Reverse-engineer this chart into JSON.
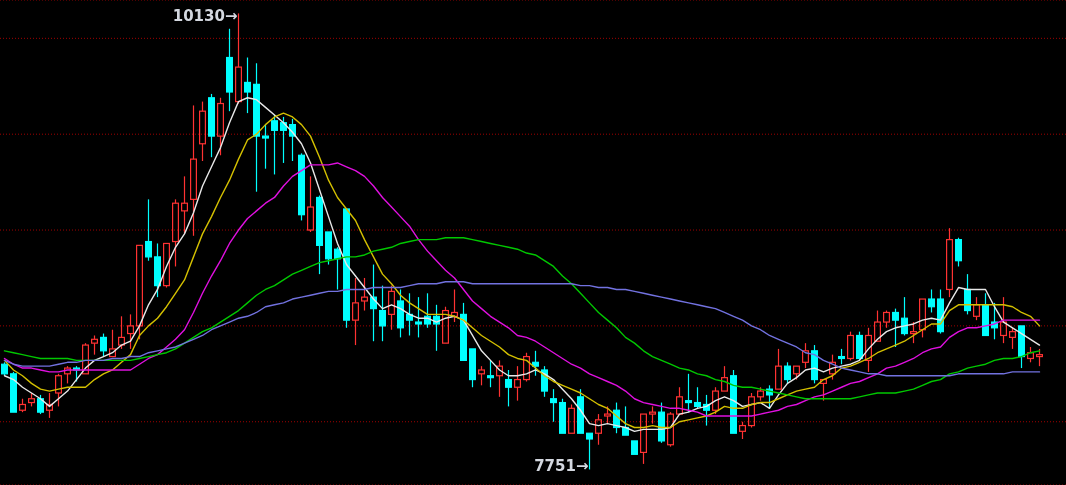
{
  "chart_data": {
    "type": "candlestick",
    "categories": [
      null,
      null,
      null,
      null,
      null,
      null,
      null,
      null,
      null,
      null,
      null,
      null,
      null,
      null,
      null,
      null,
      null,
      null,
      null,
      null,
      null,
      null,
      null,
      null,
      null,
      null,
      null,
      null,
      null,
      null,
      null,
      null,
      null,
      null,
      null,
      null,
      null,
      null,
      null,
      null,
      null,
      null,
      null,
      null,
      null,
      null,
      null,
      null,
      null,
      null,
      null,
      null,
      null,
      null,
      null,
      null,
      null,
      null,
      null,
      null,
      null,
      null,
      null,
      null,
      null,
      null,
      null,
      null,
      null,
      null,
      null,
      null,
      null,
      null,
      null,
      null,
      null,
      null,
      null,
      null,
      null,
      null,
      null,
      null,
      null,
      null,
      null,
      null,
      null,
      null,
      null,
      null,
      null,
      null,
      null,
      null,
      null,
      null,
      null,
      null,
      null,
      null,
      null,
      null,
      null,
      null,
      null,
      null,
      null,
      null,
      null,
      null,
      null,
      null,
      null,
      null
    ],
    "ohlc": [
      [
        8300,
        8310,
        8240,
        8250
      ],
      [
        8250,
        8260,
        8050,
        8050
      ],
      [
        8060,
        8120,
        8050,
        8090
      ],
      [
        8100,
        8150,
        8080,
        8120
      ],
      [
        8120,
        8140,
        8040,
        8050
      ],
      [
        8060,
        8150,
        8020,
        8090
      ],
      [
        8150,
        8250,
        8080,
        8240
      ],
      [
        8250,
        8290,
        8200,
        8280
      ],
      [
        8280,
        8290,
        8210,
        8270
      ],
      [
        8250,
        8410,
        8250,
        8400
      ],
      [
        8410,
        8450,
        8350,
        8430
      ],
      [
        8440,
        8460,
        8340,
        8370
      ],
      [
        8340,
        8480,
        8340,
        8380
      ],
      [
        8400,
        8550,
        8380,
        8440
      ],
      [
        8460,
        8560,
        8380,
        8500
      ],
      [
        8500,
        8920,
        8430,
        8920
      ],
      [
        8940,
        9160,
        8840,
        8860
      ],
      [
        8860,
        8930,
        8650,
        8710
      ],
      [
        8710,
        8930,
        8700,
        8930
      ],
      [
        8940,
        9160,
        8810,
        9140
      ],
      [
        9100,
        9280,
        8980,
        9140
      ],
      [
        9160,
        9650,
        8970,
        9370
      ],
      [
        9450,
        9670,
        9360,
        9620
      ],
      [
        9690,
        9710,
        9380,
        9490
      ],
      [
        9490,
        9690,
        9390,
        9660
      ],
      [
        9900,
        10050,
        9620,
        9720
      ],
      [
        9670,
        10130,
        9660,
        9850
      ],
      [
        9770,
        9900,
        9610,
        9720
      ],
      [
        9760,
        9870,
        9200,
        9490
      ],
      [
        9490,
        9550,
        9320,
        9480
      ],
      [
        9570,
        9600,
        9290,
        9520
      ],
      [
        9560,
        9590,
        9350,
        9520
      ],
      [
        9550,
        9580,
        9360,
        9490
      ],
      [
        9390,
        9400,
        9050,
        9080
      ],
      [
        9000,
        9280,
        8990,
        9120
      ],
      [
        9170,
        9180,
        8770,
        8920
      ],
      [
        8990,
        8990,
        8820,
        8850
      ],
      [
        8900,
        8910,
        8690,
        8850
      ],
      [
        9110,
        9110,
        8490,
        8530
      ],
      [
        8530,
        8750,
        8400,
        8620
      ],
      [
        8630,
        8750,
        8580,
        8650
      ],
      [
        8650,
        8820,
        8420,
        8590
      ],
      [
        8580,
        8710,
        8420,
        8500
      ],
      [
        8560,
        8710,
        8480,
        8680
      ],
      [
        8630,
        8690,
        8440,
        8490
      ],
      [
        8560,
        8670,
        8450,
        8530
      ],
      [
        8520,
        8650,
        8440,
        8510
      ],
      [
        8550,
        8670,
        8490,
        8510
      ],
      [
        8550,
        8610,
        8370,
        8510
      ],
      [
        8410,
        8600,
        8410,
        8580
      ],
      [
        8550,
        8690,
        8520,
        8570
      ],
      [
        8560,
        8620,
        8320,
        8320
      ],
      [
        8380,
        8380,
        8180,
        8220
      ],
      [
        8250,
        8290,
        8190,
        8270
      ],
      [
        8240,
        8320,
        8180,
        8230
      ],
      [
        8240,
        8320,
        8130,
        8290
      ],
      [
        8220,
        8270,
        8080,
        8180
      ],
      [
        8180,
        8290,
        8110,
        8220
      ],
      [
        8220,
        8360,
        8210,
        8340
      ],
      [
        8310,
        8370,
        8240,
        8290
      ],
      [
        8270,
        8290,
        8130,
        8160
      ],
      [
        8120,
        8170,
        8000,
        8100
      ],
      [
        8100,
        8120,
        7940,
        7940
      ],
      [
        7940,
        8090,
        7940,
        8070
      ],
      [
        8130,
        8170,
        7940,
        7940
      ],
      [
        7940,
        7940,
        7751,
        7910
      ],
      [
        7940,
        8040,
        7880,
        8010
      ],
      [
        8030,
        8080,
        7990,
        8040
      ],
      [
        8060,
        8100,
        7940,
        7970
      ],
      [
        7970,
        8080,
        7930,
        7930
      ],
      [
        7900,
        7900,
        7830,
        7830
      ],
      [
        7840,
        8040,
        7780,
        8040
      ],
      [
        8040,
        8080,
        7990,
        8050
      ],
      [
        8050,
        8100,
        7890,
        7900
      ],
      [
        7880,
        8050,
        7870,
        8040
      ],
      [
        8040,
        8180,
        8040,
        8130
      ],
      [
        8110,
        8250,
        8050,
        8100
      ],
      [
        8100,
        8180,
        8070,
        8080
      ],
      [
        8090,
        8140,
        7980,
        8060
      ],
      [
        8060,
        8180,
        8040,
        8160
      ],
      [
        8160,
        8290,
        8160,
        8230
      ],
      [
        8240,
        8270,
        7940,
        7940
      ],
      [
        7950,
        8000,
        7910,
        7980
      ],
      [
        7980,
        8150,
        7970,
        8130
      ],
      [
        8130,
        8180,
        8110,
        8160
      ],
      [
        8170,
        8190,
        8070,
        8140
      ],
      [
        8170,
        8380,
        8170,
        8290
      ],
      [
        8290,
        8310,
        8200,
        8220
      ],
      [
        8250,
        8290,
        8220,
        8290
      ],
      [
        8310,
        8410,
        8280,
        8370
      ],
      [
        8370,
        8400,
        8200,
        8220
      ],
      [
        8200,
        8220,
        8110,
        8220
      ],
      [
        8250,
        8350,
        8220,
        8310
      ],
      [
        8340,
        8380,
        8300,
        8330
      ],
      [
        8330,
        8470,
        8320,
        8450
      ],
      [
        8450,
        8470,
        8320,
        8330
      ],
      [
        8320,
        8490,
        8260,
        8450
      ],
      [
        8420,
        8580,
        8420,
        8520
      ],
      [
        8520,
        8580,
        8490,
        8570
      ],
      [
        8570,
        8590,
        8390,
        8530
      ],
      [
        8540,
        8650,
        8450,
        8460
      ],
      [
        8460,
        8520,
        8410,
        8470
      ],
      [
        8480,
        8640,
        8440,
        8640
      ],
      [
        8640,
        8690,
        8570,
        8600
      ],
      [
        8640,
        8690,
        8460,
        8470
      ],
      [
        8690,
        9010,
        8650,
        8950
      ],
      [
        8950,
        8960,
        8810,
        8840
      ],
      [
        8690,
        8770,
        8560,
        8580
      ],
      [
        8550,
        8650,
        8530,
        8610
      ],
      [
        8610,
        8670,
        8450,
        8450
      ],
      [
        8520,
        8620,
        8430,
        8490
      ],
      [
        8450,
        8650,
        8410,
        8520
      ],
      [
        8440,
        8490,
        8380,
        8470
      ],
      [
        8500,
        8500,
        8280,
        8340
      ],
      [
        8330,
        8390,
        8310,
        8360
      ],
      [
        8340,
        8380,
        8290,
        8350
      ]
    ],
    "colors": [
      "#00ffff",
      "#00ffff",
      "#ff3232",
      "#ff3232",
      "#00ffff",
      "#ff3232",
      "#ff3232",
      "#ff3232",
      "#00ffff",
      "#ff3232",
      "#ff3232",
      "#00ffff",
      "#ff3232",
      "#ff3232",
      "#ff3232",
      "#ff3232",
      "#00ffff",
      "#00ffff",
      "#ff3232",
      "#ff3232",
      "#ff3232",
      "#ff3232",
      "#ff3232",
      "#00ffff",
      "#ff3232",
      "#00ffff",
      "#ff3232",
      "#00ffff",
      "#00ffff",
      "#00ffff",
      "#00ffff",
      "#00ffff",
      "#00ffff",
      "#00ffff",
      "#ff3232",
      "#00ffff",
      "#00ffff",
      "#00ffff",
      "#00ffff",
      "#ff3232",
      "#ff3232",
      "#00ffff",
      "#00ffff",
      "#ff3232",
      "#00ffff",
      "#00ffff",
      "#00ffff",
      "#00ffff",
      "#00ffff",
      "#ff3232",
      "#ff3232",
      "#00ffff",
      "#00ffff",
      "#ff3232",
      "#00ffff",
      "#ff3232",
      "#00ffff",
      "#ff3232",
      "#ff3232",
      "#00ffff",
      "#00ffff",
      "#00ffff",
      "#00ffff",
      "#ff3232",
      "#00ffff",
      "#00ffff",
      "#ff3232",
      "#ff3232",
      "#00ffff",
      "#00ffff",
      "#00ffff",
      "#ff3232",
      "#ff3232",
      "#00ffff",
      "#ff3232",
      "#ff3232",
      "#00ffff",
      "#00ffff",
      "#00ffff",
      "#ff3232",
      "#ff3232",
      "#00ffff",
      "#ff3232",
      "#ff3232",
      "#ff3232",
      "#00ffff",
      "#ff3232",
      "#00ffff",
      "#ff3232",
      "#ff3232",
      "#00ffff",
      "#ff3232",
      "#ff3232",
      "#00ffff",
      "#ff3232",
      "#00ffff",
      "#ff3232",
      "#ff3232",
      "#ff3232",
      "#00ffff",
      "#00ffff",
      "#ff3232",
      "#ff3232",
      "#00ffff",
      "#00ffff",
      "#ff3232",
      "#00ffff",
      "#00ffff",
      "#ff3232",
      "#00ffff",
      "#00ffff",
      "#ff3232",
      "#ff3232",
      "#00ffff",
      "#ff3232",
      "#ff3232"
    ],
    "series": [
      {
        "type": "line",
        "color": "#e8e8e8",
        "values": [
          8240,
          8220,
          8180,
          8150,
          8120,
          8080,
          8120,
          8160,
          8220,
          8280,
          8320,
          8340,
          8360,
          8400,
          8420,
          8500,
          8610,
          8690,
          8810,
          8910,
          8980,
          9090,
          9230,
          9330,
          9430,
          9560,
          9670,
          9690,
          9680,
          9640,
          9600,
          9560,
          9510,
          9450,
          9350,
          9210,
          9070,
          8930,
          8820,
          8760,
          8700,
          8640,
          8590,
          8610,
          8590,
          8560,
          8540,
          8540,
          8520,
          8540,
          8550,
          8530,
          8450,
          8370,
          8320,
          8270,
          8240,
          8240,
          8250,
          8270,
          8250,
          8220,
          8170,
          8120,
          8060,
          7990,
          7980,
          7990,
          7980,
          7970,
          7950,
          7960,
          7960,
          7960,
          7970,
          8040,
          8050,
          8070,
          8080,
          8110,
          8130,
          8110,
          8080,
          8090,
          8100,
          8070,
          8140,
          8200,
          8230,
          8270,
          8280,
          8260,
          8280,
          8290,
          8300,
          8320,
          8380,
          8430,
          8470,
          8490,
          8500,
          8510,
          8530,
          8540,
          8530,
          8620,
          8700,
          8690,
          8690,
          8690,
          8600,
          8520,
          8490,
          8460,
          8430,
          8400
        ]
      },
      {
        "type": "line",
        "color": "#d4c000",
        "values": [
          8320,
          8270,
          8240,
          8200,
          8170,
          8160,
          8170,
          8180,
          8180,
          8180,
          8220,
          8250,
          8270,
          8310,
          8350,
          8450,
          8500,
          8540,
          8600,
          8670,
          8740,
          8860,
          8980,
          9070,
          9170,
          9260,
          9370,
          9470,
          9500,
          9550,
          9590,
          9610,
          9590,
          9550,
          9490,
          9380,
          9260,
          9170,
          9110,
          9050,
          8950,
          8860,
          8770,
          8720,
          8660,
          8620,
          8590,
          8560,
          8560,
          8560,
          8550,
          8530,
          8490,
          8450,
          8420,
          8390,
          8350,
          8330,
          8320,
          8280,
          8240,
          8210,
          8190,
          8170,
          8150,
          8120,
          8090,
          8070,
          8030,
          7990,
          7970,
          7970,
          7980,
          7970,
          7970,
          8000,
          8010,
          8020,
          8030,
          8050,
          8080,
          8070,
          8070,
          8090,
          8100,
          8100,
          8120,
          8140,
          8160,
          8170,
          8180,
          8220,
          8240,
          8280,
          8290,
          8310,
          8330,
          8360,
          8380,
          8400,
          8420,
          8450,
          8480,
          8510,
          8510,
          8580,
          8610,
          8610,
          8610,
          8610,
          8610,
          8610,
          8600,
          8570,
          8550,
          8500
        ]
      },
      {
        "type": "line",
        "color": "#e010e0",
        "values": [
          8330,
          8300,
          8280,
          8280,
          8270,
          8260,
          8260,
          8270,
          8270,
          8270,
          8270,
          8270,
          8270,
          8270,
          8270,
          8300,
          8330,
          8350,
          8390,
          8430,
          8480,
          8570,
          8670,
          8760,
          8840,
          8930,
          9000,
          9060,
          9100,
          9140,
          9170,
          9230,
          9280,
          9310,
          9340,
          9340,
          9340,
          9350,
          9330,
          9310,
          9280,
          9230,
          9170,
          9120,
          9070,
          9020,
          8950,
          8890,
          8840,
          8790,
          8750,
          8690,
          8630,
          8590,
          8550,
          8520,
          8490,
          8450,
          8440,
          8420,
          8390,
          8360,
          8330,
          8300,
          8280,
          8250,
          8230,
          8210,
          8190,
          8160,
          8120,
          8100,
          8090,
          8080,
          8070,
          8070,
          8060,
          8050,
          8030,
          8030,
          8030,
          8030,
          8030,
          8030,
          8040,
          8050,
          8060,
          8080,
          8090,
          8110,
          8130,
          8140,
          8160,
          8180,
          8200,
          8210,
          8230,
          8250,
          8280,
          8290,
          8310,
          8330,
          8360,
          8380,
          8390,
          8440,
          8470,
          8490,
          8490,
          8500,
          8510,
          8530,
          8530,
          8530,
          8530,
          8530
        ]
      },
      {
        "type": "line",
        "color": "#00c800",
        "values": [
          8370,
          8360,
          8350,
          8340,
          8330,
          8330,
          8330,
          8330,
          8320,
          8320,
          8320,
          8320,
          8320,
          8320,
          8320,
          8330,
          8340,
          8350,
          8360,
          8380,
          8410,
          8440,
          8470,
          8490,
          8520,
          8550,
          8580,
          8620,
          8660,
          8690,
          8710,
          8740,
          8770,
          8790,
          8810,
          8830,
          8840,
          8850,
          8860,
          8860,
          8870,
          8890,
          8900,
          8910,
          8930,
          8940,
          8950,
          8950,
          8950,
          8960,
          8960,
          8960,
          8950,
          8940,
          8930,
          8920,
          8910,
          8900,
          8880,
          8870,
          8840,
          8810,
          8760,
          8720,
          8670,
          8620,
          8570,
          8530,
          8490,
          8440,
          8410,
          8370,
          8340,
          8320,
          8300,
          8280,
          8270,
          8250,
          8240,
          8220,
          8210,
          8190,
          8180,
          8180,
          8170,
          8160,
          8150,
          8140,
          8130,
          8120,
          8120,
          8120,
          8120,
          8120,
          8120,
          8130,
          8140,
          8150,
          8150,
          8150,
          8160,
          8170,
          8190,
          8210,
          8220,
          8250,
          8260,
          8280,
          8290,
          8300,
          8320,
          8330,
          8330,
          8340,
          8360,
          8370
        ]
      },
      {
        "type": "line",
        "color": "#7272e0",
        "values": [
          8320,
          8300,
          8290,
          8290,
          8290,
          8290,
          8300,
          8310,
          8310,
          8320,
          8320,
          8320,
          8330,
          8330,
          8340,
          8340,
          8360,
          8370,
          8380,
          8390,
          8410,
          8430,
          8450,
          8480,
          8500,
          8520,
          8540,
          8550,
          8570,
          8600,
          8610,
          8620,
          8640,
          8650,
          8660,
          8670,
          8680,
          8680,
          8690,
          8690,
          8690,
          8700,
          8700,
          8700,
          8700,
          8710,
          8720,
          8720,
          8720,
          8730,
          8730,
          8730,
          8720,
          8720,
          8720,
          8720,
          8720,
          8720,
          8720,
          8720,
          8720,
          8720,
          8720,
          8720,
          8710,
          8710,
          8700,
          8700,
          8690,
          8690,
          8680,
          8670,
          8660,
          8650,
          8640,
          8630,
          8620,
          8610,
          8600,
          8590,
          8570,
          8550,
          8530,
          8500,
          8480,
          8450,
          8430,
          8410,
          8390,
          8360,
          8350,
          8320,
          8300,
          8280,
          8270,
          8260,
          8250,
          8250,
          8240,
          8240,
          8240,
          8240,
          8240,
          8240,
          8240,
          8240,
          8250,
          8250,
          8250,
          8250,
          8250,
          8250,
          8260,
          8260,
          8260,
          8260
        ]
      }
    ],
    "annotations": [
      "10130→",
      "7751→"
    ],
    "ylim": [
      7670,
      10200
    ],
    "yticks": [
      {
        "value": 8000,
        "label": null
      },
      {
        "value": 8500,
        "label": null
      },
      {
        "value": 9000,
        "label": null
      },
      {
        "value": 9500,
        "label": null
      },
      {
        "value": 10000,
        "label": null
      }
    ],
    "grid": "y",
    "tick_labels": false
  }
}
